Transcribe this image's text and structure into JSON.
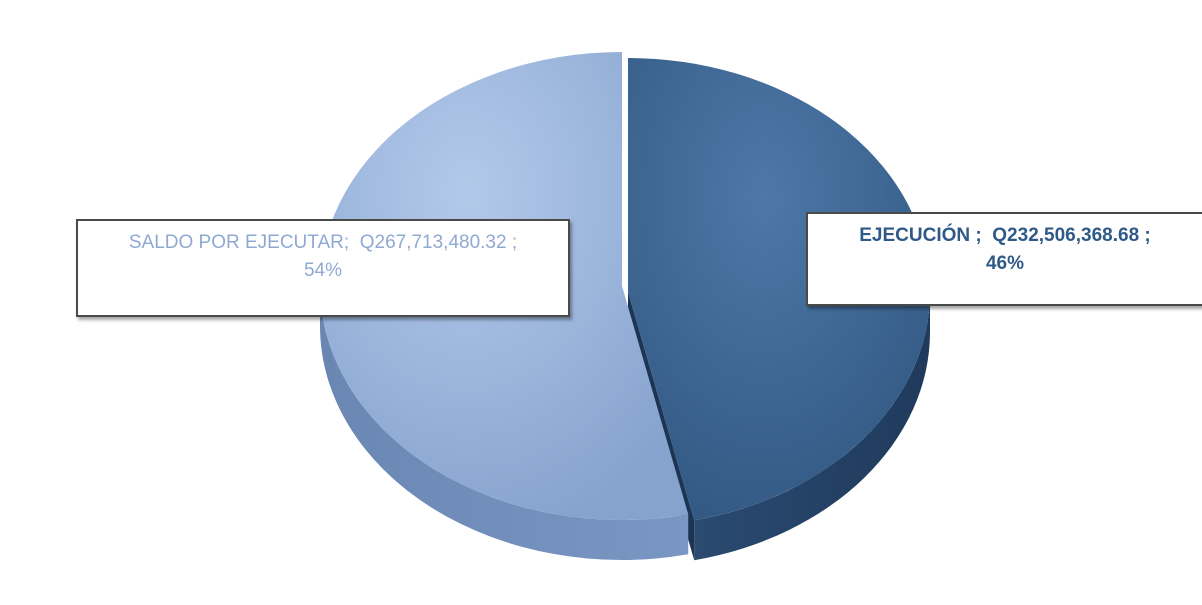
{
  "chart_data": {
    "type": "pie",
    "slices": [
      {
        "category": "EJECUCIÓN",
        "value": 232506368.68,
        "value_label": "Q232,506,368.68",
        "percent_label": "46%",
        "color": "#3d6591"
      },
      {
        "category": "SALDO POR EJECUTAR",
        "value": 267713480.32,
        "value_label": "Q267,713,480.32",
        "percent_label": "54%",
        "color": "#94b1da"
      }
    ],
    "three_d": true,
    "legend": "none"
  }
}
